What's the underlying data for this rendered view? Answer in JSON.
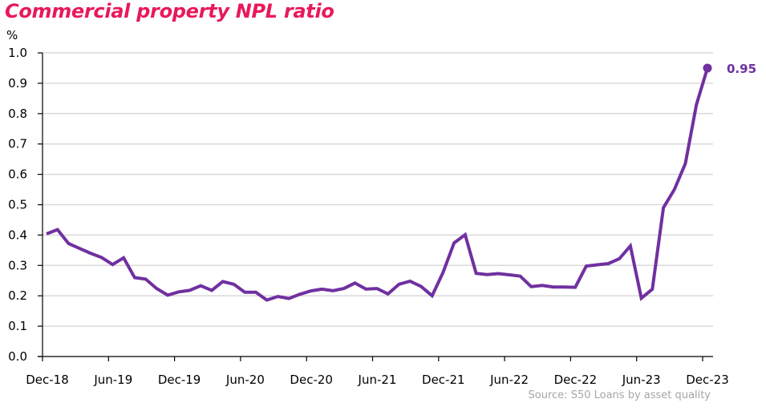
{
  "chart_data": {
    "type": "line",
    "title": "Commercial property NPL ratio",
    "ylabel": "%",
    "xlabel": "",
    "ylim": [
      0,
      1.0
    ],
    "yticks": [
      "0.0",
      "0.1",
      "0.2",
      "0.3",
      "0.4",
      "0.5",
      "0.6",
      "0.7",
      "0.8",
      "0.9",
      "1.0"
    ],
    "xtick_labels": [
      "Dec-18",
      "Jun-19",
      "Dec-19",
      "Jun-20",
      "Dec-20",
      "Jun-21",
      "Dec-21",
      "Jun-22",
      "Dec-22",
      "Jun-23",
      "Dec-23"
    ],
    "grid": true,
    "legend": "none",
    "series": [
      {
        "name": "Commercial property NPL ratio",
        "color": "#7030a0",
        "values": [
          0.404,
          0.418,
          0.372,
          0.356,
          0.34,
          0.326,
          0.303,
          0.325,
          0.26,
          0.255,
          0.224,
          0.202,
          0.213,
          0.218,
          0.233,
          0.218,
          0.247,
          0.238,
          0.212,
          0.212,
          0.186,
          0.198,
          0.191,
          0.205,
          0.216,
          0.222,
          0.217,
          0.224,
          0.242,
          0.222,
          0.224,
          0.206,
          0.238,
          0.248,
          0.231,
          0.2,
          0.277,
          0.374,
          0.401,
          0.274,
          0.27,
          0.273,
          0.269,
          0.265,
          0.23,
          0.234,
          0.229,
          0.229,
          0.228,
          0.298,
          0.302,
          0.306,
          0.322,
          0.364,
          0.192,
          0.222,
          0.49,
          0.55,
          0.636,
          0.83,
          0.95
        ]
      }
    ],
    "annotations": [
      {
        "text": "0.95",
        "point": "last"
      }
    ],
    "source": "Source:  S50 Loans by asset quality",
    "colors": {
      "title": "#e8195a",
      "line": "#7030a0",
      "grid": "#d9d9d9",
      "axis": "#000000",
      "source": "#a6a6a6"
    }
  }
}
